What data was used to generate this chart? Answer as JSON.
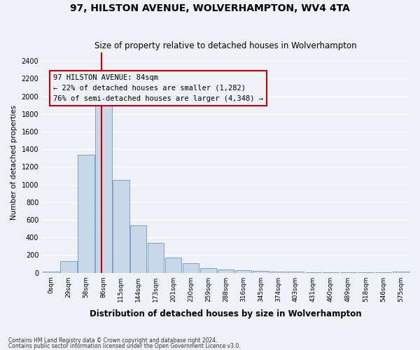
{
  "title": "97, HILSTON AVENUE, WOLVERHAMPTON, WV4 4TA",
  "subtitle": "Size of property relative to detached houses in Wolverhampton",
  "xlabel": "Distribution of detached houses by size in Wolverhampton",
  "ylabel": "Number of detached properties",
  "bar_color": "#c8d8e8",
  "bar_edge_color": "#7ba4c8",
  "categories": [
    "0sqm",
    "29sqm",
    "58sqm",
    "86sqm",
    "115sqm",
    "144sqm",
    "173sqm",
    "201sqm",
    "230sqm",
    "259sqm",
    "288sqm",
    "316sqm",
    "345sqm",
    "374sqm",
    "403sqm",
    "431sqm",
    "460sqm",
    "489sqm",
    "518sqm",
    "546sqm",
    "575sqm"
  ],
  "values": [
    10,
    130,
    1340,
    1900,
    1050,
    540,
    340,
    175,
    110,
    55,
    40,
    30,
    20,
    15,
    10,
    5,
    5,
    5,
    5,
    5,
    10
  ],
  "ylim": [
    0,
    2500
  ],
  "yticks": [
    0,
    200,
    400,
    600,
    800,
    1000,
    1200,
    1400,
    1600,
    1800,
    2000,
    2200,
    2400
  ],
  "property_line_x": 2.9,
  "annotation_text": "97 HILSTON AVENUE: 84sqm\n← 22% of detached houses are smaller (1,282)\n76% of semi-detached houses are larger (4,348) →",
  "annotation_box_color": "#cc0000",
  "footer1": "Contains HM Land Registry data © Crown copyright and database right 2024.",
  "footer2": "Contains public sector information licensed under the Open Government Licence v3.0.",
  "background_color": "#eef2f7",
  "grid_color": "#ffffff"
}
